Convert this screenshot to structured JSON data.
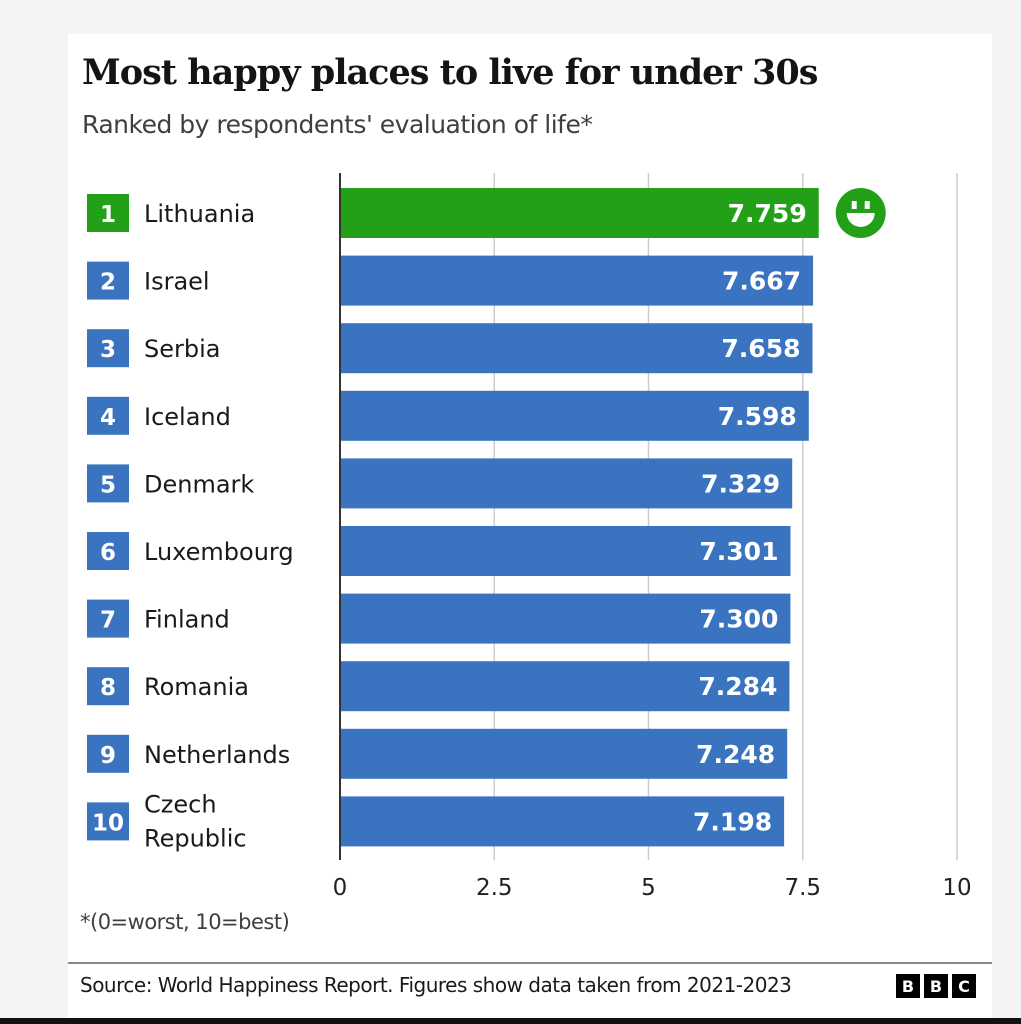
{
  "chart_data": {
    "type": "bar",
    "orientation": "horizontal",
    "title": "Most happy places to live for under 30s",
    "subtitle": "Ranked by respondents' evaluation of life*",
    "ranks": [
      "1",
      "2",
      "3",
      "4",
      "5",
      "6",
      "7",
      "8",
      "9",
      "10"
    ],
    "categories": [
      "Lithuania",
      "Israel",
      "Serbia",
      "Iceland",
      "Denmark",
      "Luxembourg",
      "Finland",
      "Romania",
      "Netherlands",
      "Czech Republic"
    ],
    "values": [
      7.759,
      7.667,
      7.658,
      7.598,
      7.329,
      7.301,
      7.3,
      7.284,
      7.248,
      7.198
    ],
    "value_labels": [
      "7.759",
      "7.667",
      "7.658",
      "7.598",
      "7.329",
      "7.301",
      "7.300",
      "7.284",
      "7.248",
      "7.198"
    ],
    "xlim": [
      0,
      10
    ],
    "xticks": [
      "0",
      "2.5",
      "5",
      "7.5",
      "10"
    ],
    "xtick_values": [
      0,
      2.5,
      5,
      7.5,
      10
    ],
    "grid": true,
    "highlight_index": 0,
    "highlight_icon": "smiley-face-icon",
    "colors": {
      "bar": "#3a74c0",
      "highlight": "#22a118",
      "grid": "#cccccc",
      "axis": "#333333"
    },
    "note": "*(0=worst, 10=best)",
    "source": "Source: World Happiness Report. Figures show data taken from 2021-2023"
  },
  "logo": [
    "B",
    "B",
    "C"
  ]
}
